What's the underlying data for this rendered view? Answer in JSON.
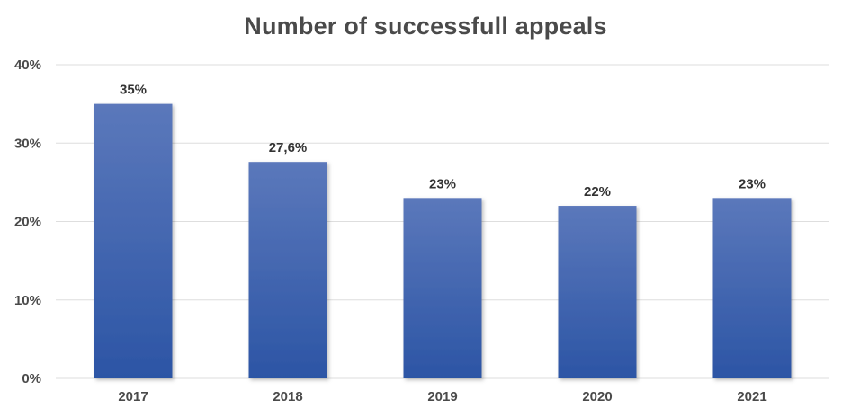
{
  "chart_data": {
    "type": "bar",
    "title": "Number of successfull appeals",
    "xlabel": "",
    "ylabel": "",
    "categories": [
      "2017",
      "2018",
      "2019",
      "2020",
      "2021"
    ],
    "values": [
      35,
      27.6,
      23,
      22,
      23
    ],
    "data_labels": [
      "35%",
      "27,6%",
      "23%",
      "22%",
      "23%"
    ],
    "yticks": [
      0,
      10,
      20,
      30,
      40
    ],
    "ytick_labels": [
      "0%",
      "10%",
      "20%",
      "30%",
      "40%"
    ],
    "ylim": [
      0,
      40
    ],
    "grid": true,
    "legend": "none",
    "colors": {
      "bar_top": "#5b78bb",
      "bar_bottom": "#2c55a5",
      "grid": "#dedede",
      "text": "#4a4a4a"
    }
  }
}
